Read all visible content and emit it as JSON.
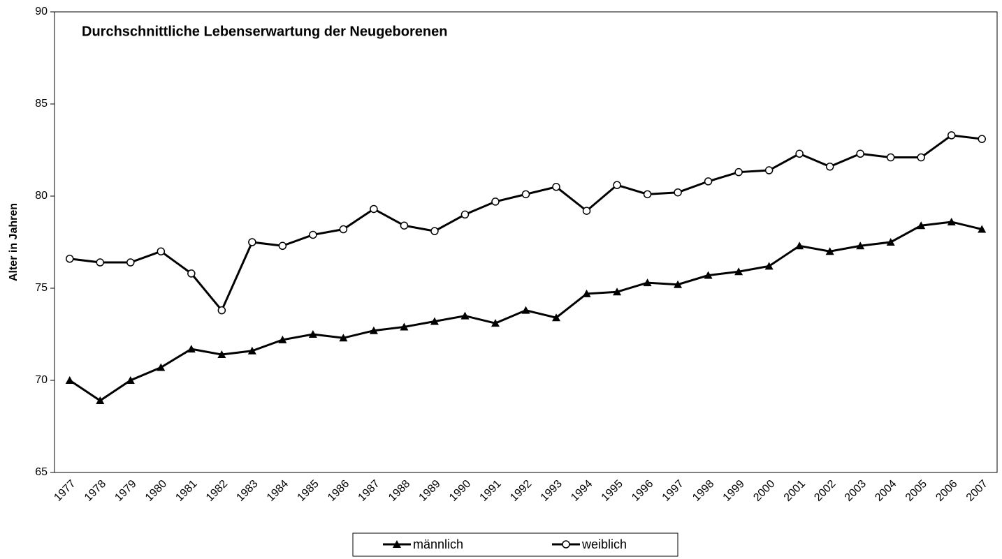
{
  "chart_data": {
    "type": "line",
    "title": "Durchschnittliche Lebenserwartung der Neugeborenen",
    "y_label": "Alter in Jahren",
    "categories": [
      "1977",
      "1978",
      "1979",
      "1980",
      "1981",
      "1982",
      "1983",
      "1984",
      "1985",
      "1986",
      "1987",
      "1988",
      "1989",
      "1990",
      "1991",
      "1992",
      "1993",
      "1994",
      "1995",
      "1996",
      "1997",
      "1998",
      "1999",
      "2000",
      "2001",
      "2002",
      "2003",
      "2004",
      "2005",
      "2006",
      "2007"
    ],
    "series": [
      {
        "name": "männlich",
        "color": "#000000",
        "marker": "triangle",
        "values": [
          70.0,
          68.9,
          70.0,
          70.7,
          71.7,
          71.4,
          71.6,
          72.2,
          72.5,
          72.3,
          72.7,
          72.9,
          73.2,
          73.5,
          73.1,
          73.8,
          73.4,
          74.7,
          74.8,
          75.3,
          75.2,
          75.7,
          75.9,
          76.2,
          77.3,
          77.0,
          77.3,
          77.5,
          78.4,
          78.6,
          78.2
        ]
      },
      {
        "name": "weiblich",
        "color": "#000000",
        "marker": "circle",
        "values": [
          76.6,
          76.4,
          76.4,
          77.0,
          75.8,
          73.8,
          77.5,
          77.3,
          77.9,
          78.2,
          79.3,
          78.4,
          78.1,
          79.0,
          79.7,
          80.1,
          80.5,
          79.2,
          80.6,
          80.1,
          80.2,
          80.8,
          81.3,
          81.4,
          82.3,
          81.6,
          82.3,
          82.1,
          82.1,
          83.3,
          83.1
        ]
      }
    ],
    "ylim": [
      65,
      90
    ],
    "yticks": [
      65,
      70,
      75,
      80,
      85,
      90
    ],
    "grid": false,
    "legend": "bottom"
  }
}
